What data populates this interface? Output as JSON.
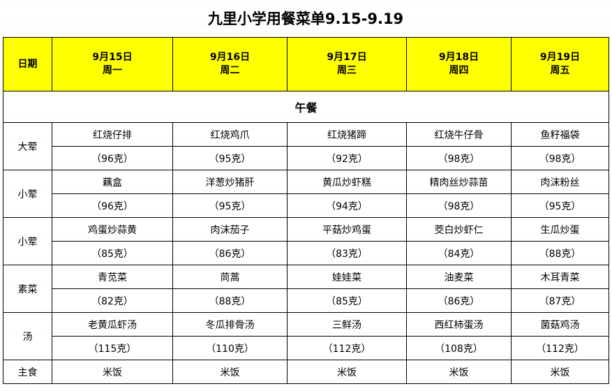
{
  "title": "九里小学用餐菜单9.15-9.19",
  "header": {
    "label": "日期",
    "days": [
      {
        "date": "9月15日",
        "weekday": "周一"
      },
      {
        "date": "9月16日",
        "weekday": "周二"
      },
      {
        "date": "9月17日",
        "weekday": "周三"
      },
      {
        "date": "9月18日",
        "weekday": "周四"
      },
      {
        "date": "9月19日",
        "weekday": "周五"
      }
    ]
  },
  "section": "午餐",
  "header_color": "#ffff00",
  "rows": [
    {
      "category": "大荤",
      "dishes": [
        "红烧仔排",
        "红烧鸡爪",
        "红烧猪蹄",
        "红烧牛仔骨",
        "鱼籽福袋"
      ],
      "weights": [
        "（96克）",
        "（95克）",
        "（92克）",
        "（98克）",
        "（98克）"
      ]
    },
    {
      "category": "小荤",
      "dishes": [
        "藕盒",
        "洋葱炒猪肝",
        "黄瓜炒虾糕",
        "精肉丝炒蒜苗",
        "肉沫粉丝"
      ],
      "weights": [
        "（96克）",
        "（95克）",
        "（94克）",
        "（98克）",
        "（95克）"
      ]
    },
    {
      "category": "小荤",
      "dishes": [
        "鸡蛋炒蒜黄",
        "肉沫茄子",
        "平菇炒鸡蛋",
        "茭白炒虾仁",
        "生瓜炒蛋"
      ],
      "weights": [
        "（85克）",
        "（86克）",
        "（83克）",
        "（84克）",
        "（88克）"
      ]
    },
    {
      "category": "素菜",
      "dishes": [
        "青苋菜",
        "茼蒿",
        "娃娃菜",
        "油麦菜",
        "木耳青菜"
      ],
      "weights": [
        "（82克）",
        "（88克）",
        "（85克）",
        "（86克）",
        "（87克）"
      ]
    },
    {
      "category": "汤",
      "dishes": [
        "老黄瓜虾汤",
        "冬瓜排骨汤",
        "三鲜汤",
        "西红柿蛋汤",
        "菌菇鸡汤"
      ],
      "weights": [
        "（115克）",
        "（110克）",
        "（112克）",
        "（108克）",
        "（112克）"
      ]
    }
  ],
  "staple": {
    "category": "主食",
    "items": [
      "米饭",
      "米饭",
      "米饭",
      "米饭",
      "米饭"
    ]
  }
}
